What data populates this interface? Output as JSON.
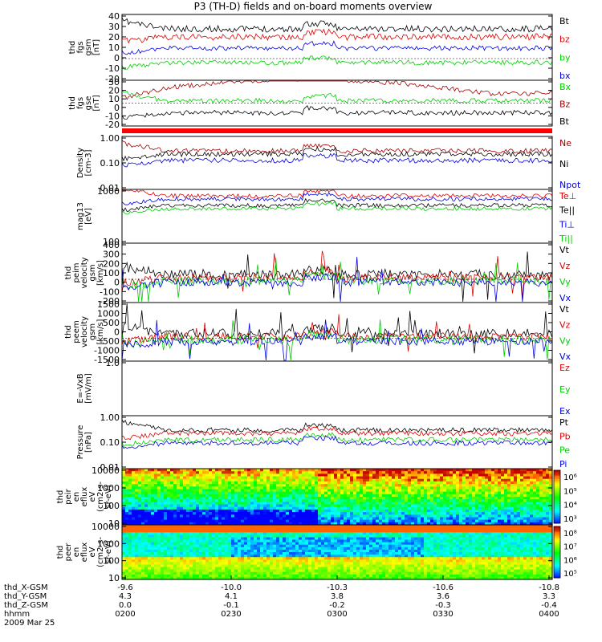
{
  "title": "P3 (TH-D) fields and on-board moments overview",
  "colors": {
    "black": "#000000",
    "red": "#e00000",
    "green": "#00d000",
    "blue": "#0000e0",
    "darkred": "#a00000"
  },
  "chart_data": {
    "type": "line",
    "panels": [
      {
        "id": "fgs-gsm",
        "ylabel": [
          "thd",
          "fgs",
          "gsm",
          "[nT]"
        ],
        "yticks": [
          "40",
          "30",
          "20",
          "10",
          "0",
          "-10",
          "-20"
        ],
        "ylim": [
          -20,
          40
        ],
        "legend": [
          {
            "name": "Bt",
            "color": "#000000"
          },
          {
            "name": "bz",
            "color": "#e00000"
          },
          {
            "name": "by",
            "color": "#00d000"
          },
          {
            "name": "bx",
            "color": "#0000e0"
          }
        ]
      },
      {
        "id": "fgs-gse",
        "ylabel": [
          "thd",
          "fgs",
          "gse",
          "[nT]"
        ],
        "yticks": [
          "30",
          "20",
          "10",
          "0",
          "-10",
          "-20"
        ],
        "ylim": [
          -25,
          30
        ],
        "legend": [
          {
            "name": "Bx",
            "color": "#00d000"
          },
          {
            "name": "Bz",
            "color": "#a00000"
          },
          {
            "name": "Bt",
            "color": "#000000"
          }
        ]
      },
      {
        "id": "density",
        "ylabel": [
          "Density",
          "[cm-3]"
        ],
        "yticks": [
          "1.00",
          "0.10",
          "0.01"
        ],
        "scale": "log",
        "legend": [
          {
            "name": "Ne",
            "color": "#a00000"
          },
          {
            "name": "Ni",
            "color": "#000000"
          },
          {
            "name": "Npot",
            "color": "#0000e0"
          }
        ]
      },
      {
        "id": "temperature",
        "ylabel": [
          "mag13",
          "[eV]"
        ],
        "yticks": [
          "1000",
          "100"
        ],
        "scale": "log",
        "legend": [
          {
            "name": "Te⊥",
            "color": "#e00000"
          },
          {
            "name": "Te||",
            "color": "#000000"
          },
          {
            "name": "Ti⊥",
            "color": "#0000e0"
          },
          {
            "name": "Ti||",
            "color": "#00d000"
          }
        ]
      },
      {
        "id": "peim-velocity",
        "ylabel": [
          "thd",
          "peim",
          "velocity",
          "gsm",
          "[km/s]"
        ],
        "yticks": [
          "400",
          "300",
          "200",
          "100",
          "0",
          "-100",
          "-200"
        ],
        "ylim": [
          -200,
          400
        ],
        "legend": [
          {
            "name": "Vt",
            "color": "#000000"
          },
          {
            "name": "Vz",
            "color": "#e00000"
          },
          {
            "name": "Vy",
            "color": "#00d000"
          },
          {
            "name": "Vx",
            "color": "#0000e0"
          }
        ]
      },
      {
        "id": "peem-velocity",
        "ylabel": [
          "thd",
          "peem",
          "velocity",
          "gsm",
          "[km/s]"
        ],
        "yticks": [
          "1500",
          "1000",
          "500",
          "0",
          "-500",
          "-1000",
          "-1500"
        ],
        "ylim": [
          -1500,
          1500
        ],
        "legend": [
          {
            "name": "Vt",
            "color": "#000000"
          },
          {
            "name": "Vz",
            "color": "#e00000"
          },
          {
            "name": "Vy",
            "color": "#00d000"
          },
          {
            "name": "Vx",
            "color": "#0000e0"
          }
        ]
      },
      {
        "id": "efield",
        "ylabel": [
          "E=-VxB",
          "[mV/m]"
        ],
        "yticks": [
          "1.0"
        ],
        "legend": [
          {
            "name": "Ez",
            "color": "#e00000"
          },
          {
            "name": "Ey",
            "color": "#00d000"
          },
          {
            "name": "Ex",
            "color": "#0000e0"
          }
        ]
      },
      {
        "id": "pressure",
        "ylabel": [
          "Pressure",
          "[nPa]"
        ],
        "yticks": [
          "1.00",
          "0.10",
          "0.01"
        ],
        "scale": "log",
        "legend": [
          {
            "name": "Pt",
            "color": "#000000"
          },
          {
            "name": "Pb",
            "color": "#e00000"
          },
          {
            "name": "Pe",
            "color": "#00d000"
          },
          {
            "name": "Pi",
            "color": "#0000e0"
          }
        ]
      },
      {
        "id": "peir-spec",
        "type": "heatmap",
        "ylabel": [
          "thd",
          "peir",
          "en",
          "eflux",
          "eV",
          "(cm2-s-",
          "sr-eV)"
        ],
        "yticks": [
          "10000",
          "1000",
          "100",
          "10"
        ],
        "colorbar": [
          "10⁶",
          "10⁵",
          "10⁴",
          "10³"
        ]
      },
      {
        "id": "peer-spec",
        "type": "heatmap",
        "ylabel": [
          "thd",
          "peer",
          "en",
          "eflux",
          "eV",
          "(cm2-s-",
          "sr-eV)"
        ],
        "yticks": [
          "10000",
          "1000",
          "100",
          "10"
        ],
        "colorbar": [
          "10⁸",
          "10⁷",
          "10⁶",
          "10⁵"
        ]
      }
    ],
    "xaxis": {
      "rows": [
        {
          "label": "thd_X-GSM",
          "values": [
            "-9.6",
            "-10.0",
            "-10.3",
            "-10.6",
            "-10.8"
          ]
        },
        {
          "label": "thd_Y-GSM",
          "values": [
            "4.3",
            "4.1",
            "3.8",
            "3.6",
            "3.3"
          ]
        },
        {
          "label": "thd_Z-GSM",
          "values": [
            "0.0",
            "-0.1",
            "-0.2",
            "-0.3",
            "-0.4"
          ]
        },
        {
          "label": "hhmm",
          "values": [
            "0200",
            "0230",
            "0300",
            "0330",
            "0400"
          ]
        }
      ],
      "date": "2009 Mar 25"
    }
  }
}
